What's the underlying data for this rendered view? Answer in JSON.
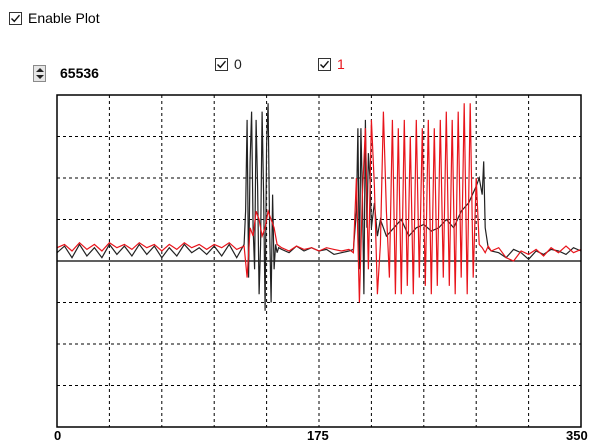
{
  "enable_plot": {
    "label": "Enable Plot",
    "checked": true
  },
  "legend": [
    {
      "label": "0",
      "checked": true,
      "color": "#222222"
    },
    {
      "label": "1",
      "checked": true,
      "color": "#e8141b"
    }
  ],
  "scale": {
    "value": "65536"
  },
  "chart_data": {
    "type": "line",
    "title": "",
    "xlabel": "",
    "ylabel": "",
    "xlim": [
      0,
      350
    ],
    "ylim": [
      -1,
      1
    ],
    "x_tick_labels": [
      "0",
      "175",
      "350"
    ],
    "grid": true,
    "x_grid_divisions": 10,
    "y_grid_divisions": 8,
    "legend_placement": "top",
    "series": [
      {
        "name": "0",
        "color": "#222222",
        "x": [
          0,
          5,
          10,
          15,
          20,
          25,
          30,
          35,
          40,
          45,
          50,
          55,
          60,
          65,
          70,
          75,
          80,
          85,
          90,
          95,
          100,
          105,
          110,
          115,
          120,
          125,
          126,
          127,
          128,
          129,
          130,
          131,
          132,
          133,
          134,
          135,
          136,
          137,
          138,
          139,
          140,
          141,
          142,
          143,
          144,
          145,
          146,
          147,
          148,
          150,
          155,
          160,
          165,
          170,
          175,
          180,
          185,
          190,
          195,
          198,
          200,
          201,
          202,
          203,
          204,
          205,
          206,
          207,
          208,
          209,
          210,
          212,
          214,
          216,
          218,
          220,
          225,
          230,
          235,
          240,
          245,
          250,
          255,
          260,
          265,
          270,
          275,
          280,
          282,
          284,
          285,
          286,
          288,
          290,
          295,
          300,
          305,
          310,
          315,
          320,
          325,
          330,
          335,
          340,
          345,
          350
        ],
        "y": [
          0.05,
          0.09,
          0.02,
          0.1,
          0.03,
          0.08,
          0.02,
          0.1,
          0.04,
          0.09,
          0.03,
          0.1,
          0.04,
          0.09,
          0.02,
          0.08,
          0.03,
          0.1,
          0.05,
          0.08,
          0.04,
          0.09,
          0.03,
          0.1,
          0.02,
          0.1,
          0.3,
          0.85,
          -0.1,
          0.6,
          0.9,
          0.2,
          -0.05,
          0.85,
          0.45,
          -0.2,
          0.1,
          0.9,
          0.4,
          -0.3,
          0.7,
          0.95,
          0.2,
          -0.25,
          0.4,
          -0.05,
          0.1,
          0.05,
          0.08,
          0.07,
          0.05,
          0.09,
          0.06,
          0.08,
          0.06,
          0.07,
          0.04,
          0.05,
          0.06,
          0.07,
          0.3,
          0.8,
          -0.05,
          0.8,
          0.4,
          -0.2,
          0.85,
          0.2,
          0.65,
          0.5,
          0.2,
          0.35,
          0.15,
          0.25,
          0.2,
          0.15,
          0.2,
          0.25,
          0.15,
          0.2,
          0.22,
          0.18,
          0.2,
          0.25,
          0.2,
          0.3,
          0.35,
          0.45,
          0.5,
          0.4,
          0.6,
          0.2,
          0.08,
          0.06,
          0.05,
          0.02,
          0.07,
          0.05,
          0.01,
          0.06,
          0.04,
          0.07,
          0.06,
          0.04,
          0.08,
          0.06
        ]
      },
      {
        "name": "1",
        "color": "#e8141b",
        "x": [
          0,
          5,
          10,
          15,
          20,
          25,
          30,
          35,
          40,
          45,
          50,
          55,
          60,
          65,
          70,
          75,
          80,
          85,
          90,
          95,
          100,
          105,
          110,
          115,
          120,
          125,
          127,
          129,
          131,
          133,
          135,
          137,
          139,
          141,
          143,
          145,
          147,
          150,
          155,
          160,
          165,
          170,
          175,
          180,
          185,
          190,
          195,
          198,
          200,
          202,
          204,
          206,
          208,
          210,
          212,
          214,
          216,
          218,
          220,
          222,
          224,
          226,
          228,
          230,
          232,
          234,
          236,
          238,
          240,
          242,
          244,
          246,
          248,
          250,
          252,
          254,
          256,
          258,
          260,
          262,
          264,
          266,
          268,
          270,
          272,
          274,
          276,
          278,
          280,
          282,
          284,
          286,
          288,
          290,
          295,
          300,
          305,
          310,
          315,
          320,
          325,
          330,
          335,
          340,
          345,
          350
        ],
        "y": [
          0.08,
          0.1,
          0.06,
          0.11,
          0.07,
          0.1,
          0.06,
          0.11,
          0.08,
          0.1,
          0.07,
          0.11,
          0.08,
          0.1,
          0.06,
          0.1,
          0.07,
          0.11,
          0.08,
          0.1,
          0.07,
          0.1,
          0.08,
          0.11,
          0.07,
          0.09,
          -0.1,
          0.2,
          0.15,
          0.3,
          0.25,
          0.15,
          0.2,
          0.3,
          0.25,
          0.2,
          0.1,
          0.08,
          0.06,
          0.09,
          0.07,
          0.08,
          0.06,
          0.08,
          0.07,
          0.06,
          0.07,
          0.05,
          0.5,
          -0.25,
          0.4,
          0.8,
          -0.05,
          0.85,
          0.45,
          -0.2,
          0.1,
          0.9,
          0.3,
          -0.1,
          0.85,
          -0.2,
          0.8,
          -0.2,
          0.85,
          -0.15,
          0.75,
          -0.2,
          0.85,
          -0.1,
          0.8,
          -0.15,
          0.85,
          -0.2,
          0.8,
          -0.15,
          0.85,
          -0.1,
          0.9,
          -0.15,
          0.85,
          -0.2,
          0.9,
          -0.1,
          0.95,
          -0.2,
          0.95,
          -0.1,
          0.5,
          0.1,
          0.08,
          0.05,
          0.09,
          0.06,
          0.08,
          0.02,
          0.0,
          0.06,
          0.04,
          0.07,
          0.03,
          0.08,
          0.05,
          0.09,
          0.05,
          0.07
        ]
      }
    ]
  }
}
